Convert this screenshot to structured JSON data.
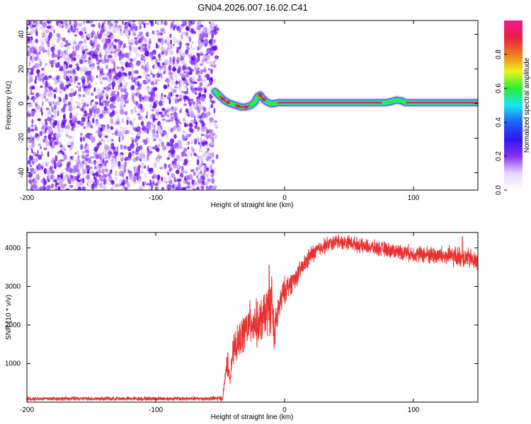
{
  "title": "GN04.2026.007.16.02.C41",
  "colors": {
    "line": "#e83232",
    "text": "#000000",
    "background": "#ffffff",
    "speckle_dark": "#6a0ff0",
    "speckle_light": "#c9a4f7",
    "band_red": "#e6204a",
    "band_green": "#2bef33",
    "band_cyan": "#18e5f0",
    "band_blue": "#1f3ff5"
  },
  "colorbar": {
    "label": "Normalized spectral amplitude",
    "ticks": [
      "0.0",
      "0.2",
      "0.4",
      "0.6",
      "0.8"
    ],
    "tick_values": [
      0.0,
      0.2,
      0.4,
      0.6,
      0.8
    ],
    "range": [
      0,
      1
    ],
    "stops": [
      "#ffffff",
      "#e6d6fb",
      "#8a2ff1",
      "#2f16f2",
      "#1e63f6",
      "#18e5f0",
      "#2bef33",
      "#e8f21b",
      "#f07a1e",
      "#e6204a",
      "#f01a8a"
    ]
  },
  "chart_data": [
    {
      "type": "heatmap",
      "name": "spectrogram",
      "title": "GN04.2026.007.16.02.C41",
      "xlabel": "Height of straight line (km)",
      "ylabel": "Frequency (Hz)",
      "xlim": [
        -200,
        150
      ],
      "ylim": [
        -50,
        48
      ],
      "xticks": [
        -200,
        -100,
        0,
        100
      ],
      "xtick_labels": [
        "-200",
        "-100",
        "0",
        "100"
      ],
      "yticks": [
        -40,
        -20,
        0,
        20,
        40
      ],
      "ytick_labels": [
        "-40",
        "-20",
        "0",
        "20",
        "40"
      ],
      "noise_region_x": [
        -200,
        -53
      ],
      "signal_track": {
        "x": [
          -54,
          -50,
          -47,
          -45,
          -42,
          -38,
          -34,
          -30,
          -26,
          -23,
          -21,
          -19,
          -17,
          -14,
          -11,
          -8,
          -5,
          0,
          20,
          40,
          60,
          78,
          82,
          87,
          91,
          94,
          100,
          120,
          140,
          150
        ],
        "freq_hz": [
          7,
          4,
          2,
          1,
          0,
          -1,
          -2,
          -2,
          -1,
          1,
          4,
          5,
          3,
          1,
          0,
          0,
          0.5,
          0.5,
          0.5,
          0.5,
          0.5,
          0.5,
          1,
          2,
          1.5,
          0.5,
          0.5,
          0.5,
          0.5,
          0.5
        ],
        "bright_segments_x": [
          [
            -50,
            -46
          ],
          [
            -38,
            -28
          ],
          [
            -20,
            -17
          ],
          [
            -5,
            75
          ],
          [
            95,
            150
          ]
        ]
      }
    },
    {
      "type": "line",
      "name": "snr",
      "xlabel": "Height of straight line (km)",
      "ylabel": "SNR (10 * v/v)",
      "xlim": [
        -200,
        150
      ],
      "ylim": [
        0,
        4400
      ],
      "xticks": [
        -200,
        -100,
        0,
        100
      ],
      "xtick_labels": [
        "-200",
        "-100",
        "0",
        "100"
      ],
      "yticks": [
        1000,
        2000,
        3000,
        4000
      ],
      "ytick_labels": [
        "1000",
        "2000",
        "3000",
        "4000"
      ],
      "envelope": {
        "x": [
          -200,
          -60,
          -48,
          -45,
          -43,
          -40,
          -35,
          -30,
          -25,
          -20,
          -15,
          -10,
          -8,
          -5,
          0,
          10,
          20,
          30,
          40,
          50,
          60,
          80,
          100,
          120,
          140,
          150
        ],
        "mean": [
          90,
          90,
          100,
          1000,
          600,
          1300,
          1600,
          1900,
          2100,
          2000,
          2300,
          2500,
          1700,
          2400,
          2900,
          3300,
          3800,
          4050,
          4150,
          4150,
          4050,
          3950,
          3850,
          3800,
          3750,
          3650
        ],
        "amp": [
          60,
          60,
          80,
          300,
          250,
          450,
          550,
          650,
          700,
          700,
          750,
          800,
          600,
          500,
          400,
          300,
          280,
          250,
          220,
          220,
          220,
          230,
          250,
          300,
          330,
          300
        ]
      },
      "peaks": [
        [
          -44,
          1280
        ],
        [
          -12,
          3550
        ],
        [
          -10,
          3250
        ],
        [
          42,
          4340
        ],
        [
          138,
          4300
        ]
      ]
    }
  ]
}
